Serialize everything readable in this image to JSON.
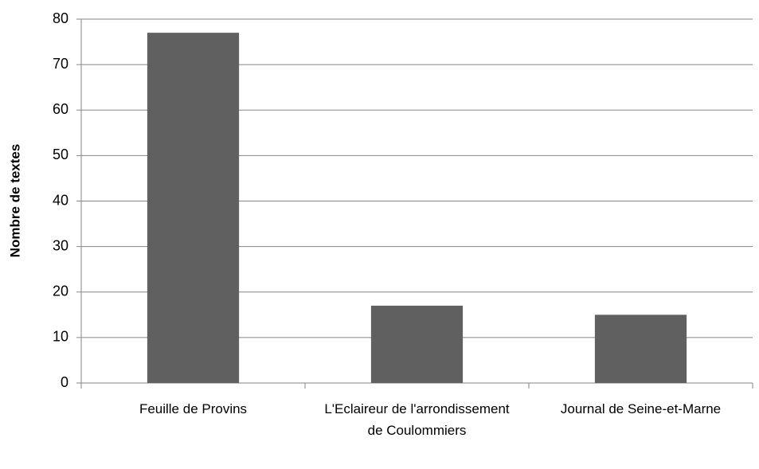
{
  "chart_data": {
    "type": "bar",
    "y_label": "Nombre de textes",
    "categories": [
      "Feuille de Provins",
      "L'Eclaireur de l'arrondissement de Coulommiers",
      "Journal de Seine-et-Marne"
    ],
    "values": [
      77,
      17,
      15
    ],
    "color": "#606060",
    "ylim": [
      0,
      80
    ],
    "yticks": [
      0,
      10,
      20,
      30,
      40,
      50,
      60,
      70,
      80
    ],
    "grid": true
  }
}
